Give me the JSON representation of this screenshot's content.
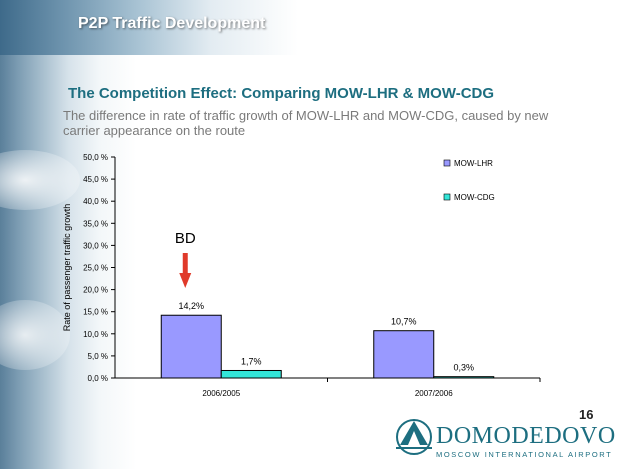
{
  "header": {
    "title": "P2P Traffic Development"
  },
  "section_title": "The Competition Effect: Comparing MOW-LHR & MOW-CDG",
  "description": "The difference in rate of traffic growth of MOW-LHR and MOW-CDG, caused by new carrier appearance on the route",
  "chart_data": {
    "type": "bar",
    "categories": [
      "2006/2005",
      "2007/2006"
    ],
    "series": [
      {
        "name": "MOW-LHR",
        "values": [
          14.2,
          10.7
        ],
        "labels": [
          "14,2%",
          "10,7%"
        ],
        "color": "#9999ff"
      },
      {
        "name": "MOW-CDG",
        "values": [
          1.7,
          0.3
        ],
        "labels": [
          "1,7%",
          "0,3%"
        ],
        "color": "#33e6d9"
      }
    ],
    "ylabel": "Rate of passenger traffic growth",
    "ylim": [
      0,
      50
    ],
    "yticks": [
      "0,0 %",
      "5,0 %",
      "10,0 %",
      "15,0 %",
      "20,0 %",
      "25,0 %",
      "30,0 %",
      "35,0 %",
      "40,0 %",
      "45,0 %",
      "50,0 %"
    ],
    "legend_position": "right",
    "grid": false,
    "annotation": {
      "text": "BD",
      "arrow_color": "#e03a2a"
    }
  },
  "page_number": "16",
  "logo": {
    "word": "DOMODEDOVO",
    "subtitle": "MOSCOW INTERNATIONAL AIRPORT"
  }
}
